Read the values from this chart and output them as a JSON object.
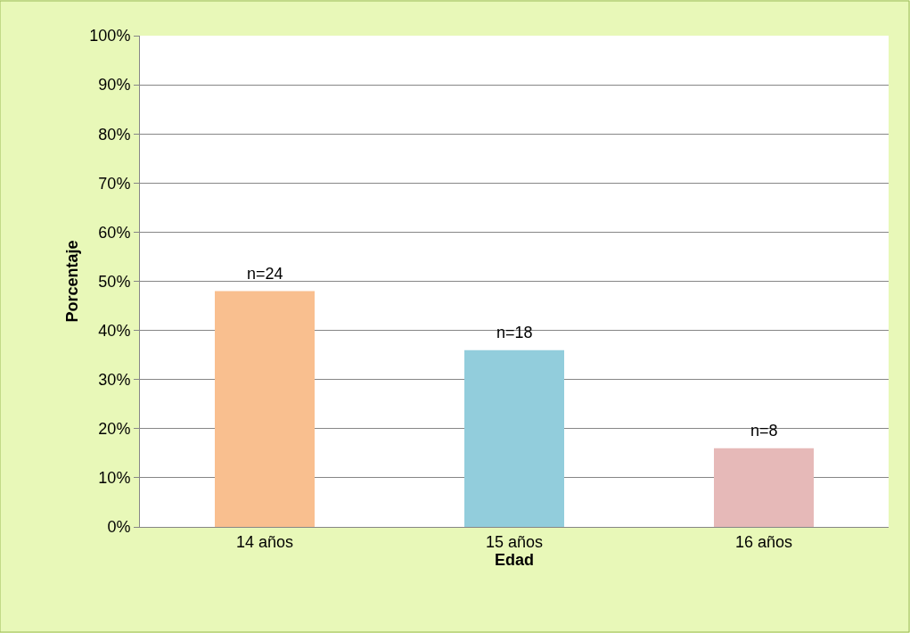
{
  "chart_data": {
    "type": "bar",
    "xlabel": "Edad",
    "ylabel": "Porcentaje",
    "categories": [
      "14 años",
      "15 años",
      "16 años"
    ],
    "values": [
      48,
      36,
      16
    ],
    "colors": [
      "#f9bf8f",
      "#92cddc",
      "#e6b9b8"
    ],
    "annotations": [
      {
        "text": "n=24",
        "x": "14 años",
        "y": 48
      },
      {
        "text": "n=18",
        "x": "15 años",
        "y": 36
      },
      {
        "text": "n=8",
        "x": "16 años",
        "y": 16
      }
    ],
    "ylim": [
      0,
      100
    ],
    "yticks": [
      {
        "value": 0,
        "label": "0%"
      },
      {
        "value": 10,
        "label": "10%"
      },
      {
        "value": 20,
        "label": "20%"
      },
      {
        "value": 30,
        "label": "30%"
      },
      {
        "value": 40,
        "label": "40%"
      },
      {
        "value": 50,
        "label": "50%"
      },
      {
        "value": 60,
        "label": "60%"
      },
      {
        "value": 70,
        "label": "70%"
      },
      {
        "value": 80,
        "label": "80%"
      },
      {
        "value": 90,
        "label": "90%"
      },
      {
        "value": 100,
        "label": "100%"
      }
    ],
    "grid": "y"
  }
}
